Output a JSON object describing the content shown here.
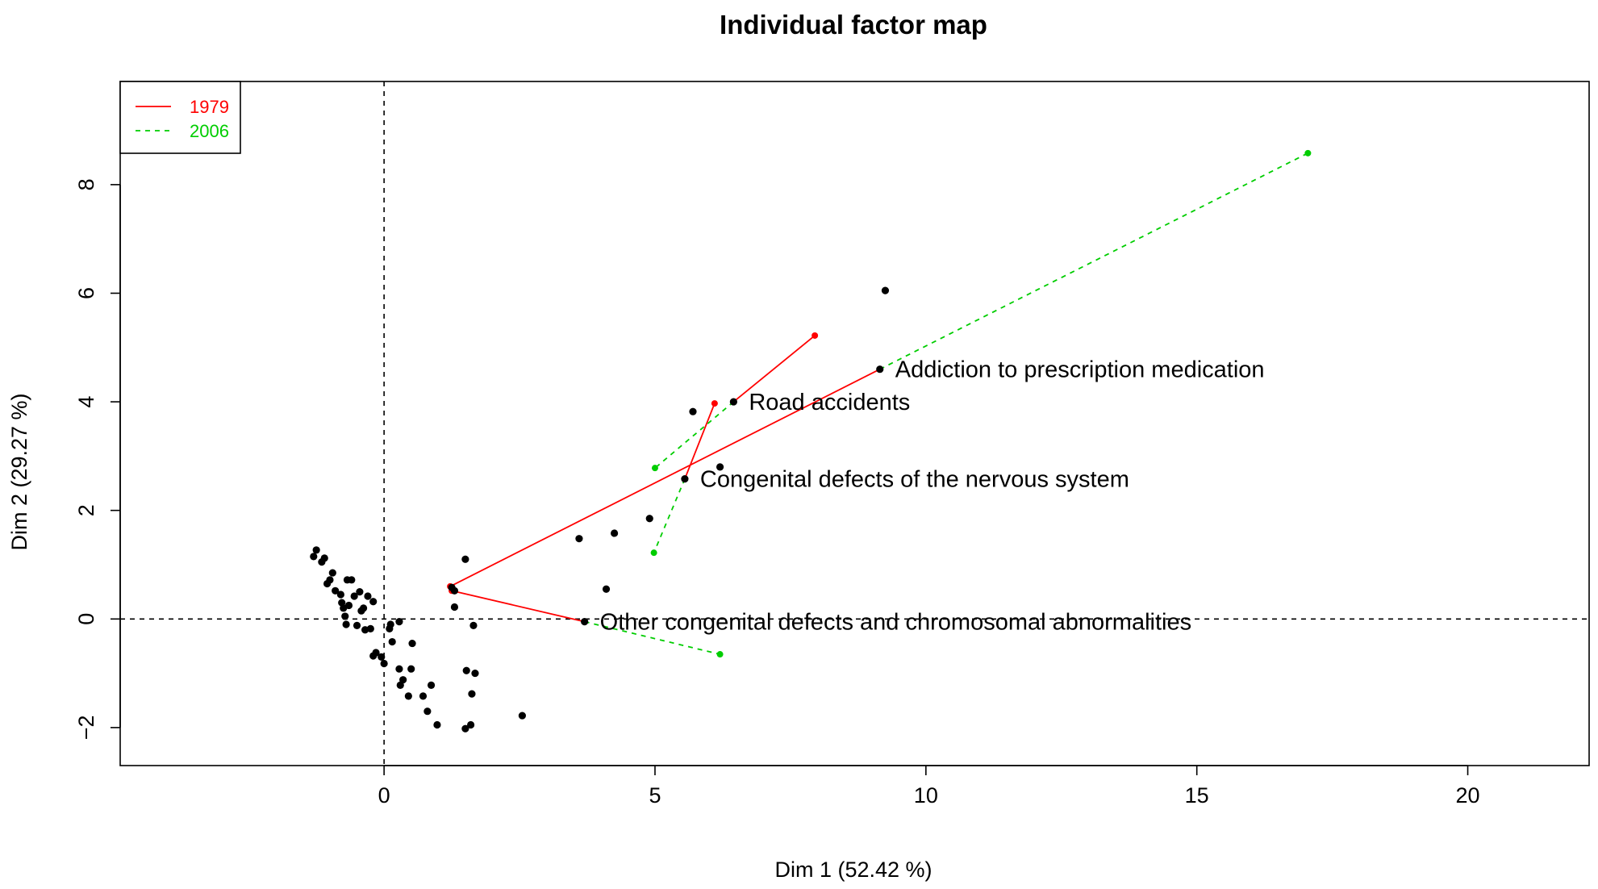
{
  "chart_data": {
    "type": "scatter",
    "title": "Individual factor map",
    "xlabel": "Dim 1 (52.42 %)",
    "ylabel": "Dim 2 (29.27 %)",
    "xlim": [
      -4.87,
      22.24
    ],
    "ylim": [
      -2.7,
      9.9
    ],
    "xticks": [
      0,
      5,
      10,
      15,
      20
    ],
    "yticks": [
      -2,
      0,
      2,
      4,
      6,
      8
    ],
    "reference_lines": {
      "x": 0,
      "y": 0,
      "style": "dashed"
    },
    "legend": {
      "position": "top-left",
      "entries": [
        {
          "label": "1979",
          "color": "#FF0000",
          "style": "solid"
        },
        {
          "label": "2006",
          "color": "#00CD00",
          "style": "dashed"
        }
      ]
    },
    "points": [
      [
        -1.3,
        1.15
      ],
      [
        -1.25,
        1.27
      ],
      [
        -1.15,
        1.05
      ],
      [
        -1.1,
        1.12
      ],
      [
        -1.05,
        0.65
      ],
      [
        -1.0,
        0.72
      ],
      [
        -0.95,
        0.85
      ],
      [
        -0.9,
        0.52
      ],
      [
        -0.8,
        0.45
      ],
      [
        -0.78,
        0.3
      ],
      [
        -0.75,
        0.2
      ],
      [
        -0.72,
        0.05
      ],
      [
        -0.7,
        -0.1
      ],
      [
        -0.68,
        0.72
      ],
      [
        -0.65,
        0.25
      ],
      [
        -0.6,
        0.72
      ],
      [
        -0.55,
        0.42
      ],
      [
        -0.5,
        -0.12
      ],
      [
        -0.45,
        0.5
      ],
      [
        -0.42,
        0.15
      ],
      [
        -0.38,
        0.2
      ],
      [
        -0.35,
        -0.2
      ],
      [
        -0.3,
        0.42
      ],
      [
        -0.25,
        -0.18
      ],
      [
        -0.2,
        0.32
      ],
      [
        -0.2,
        -0.68
      ],
      [
        -0.15,
        -0.62
      ],
      [
        -0.05,
        -0.7
      ],
      [
        0.0,
        -0.82
      ],
      [
        0.1,
        -0.18
      ],
      [
        0.12,
        -0.1
      ],
      [
        0.15,
        -0.42
      ],
      [
        0.28,
        -0.05
      ],
      [
        0.28,
        -0.92
      ],
      [
        0.3,
        -1.22
      ],
      [
        0.35,
        -1.12
      ],
      [
        0.45,
        -1.42
      ],
      [
        0.5,
        -0.92
      ],
      [
        0.52,
        -0.45
      ],
      [
        0.72,
        -1.42
      ],
      [
        0.8,
        -1.7
      ],
      [
        0.87,
        -1.22
      ],
      [
        0.98,
        -1.95
      ],
      [
        1.3,
        0.22
      ],
      [
        1.5,
        1.1
      ],
      [
        1.5,
        -2.02
      ],
      [
        1.52,
        -0.95
      ],
      [
        1.6,
        -1.95
      ],
      [
        1.62,
        -1.38
      ],
      [
        1.65,
        -0.12
      ],
      [
        1.68,
        -1.0
      ],
      [
        2.55,
        -1.78
      ],
      [
        3.6,
        1.48
      ],
      [
        4.1,
        0.55
      ],
      [
        4.25,
        1.58
      ],
      [
        4.9,
        1.85
      ],
      [
        5.55,
        2.58
      ],
      [
        5.7,
        3.82
      ],
      [
        6.2,
        2.8
      ],
      [
        6.45,
        4.0
      ],
      [
        9.15,
        4.6
      ],
      [
        9.25,
        6.05
      ],
      [
        3.7,
        -0.05
      ],
      [
        1.25,
        0.58
      ],
      [
        1.3,
        0.52
      ]
    ],
    "labeled_points": [
      {
        "label": "Addiction to prescription medication",
        "x": 9.15,
        "y": 4.6
      },
      {
        "label": "Road accidents",
        "x": 6.45,
        "y": 4.0
      },
      {
        "label": "Congenital defects of the nervous system",
        "x": 5.55,
        "y": 2.58
      },
      {
        "label": "Other congenital defects and chromosomal abnormalities",
        "x": 3.7,
        "y": -0.05
      }
    ],
    "series": [
      {
        "name": "1979",
        "color": "#FF0000",
        "style": "solid",
        "segments": [
          {
            "from": [
              9.15,
              4.6
            ],
            "to": [
              1.22,
              0.6
            ]
          },
          {
            "from": [
              6.45,
              4.0
            ],
            "to": [
              7.95,
              5.22
            ]
          },
          {
            "from": [
              5.55,
              2.58
            ],
            "to": [
              6.1,
              3.97
            ]
          },
          {
            "from": [
              3.7,
              -0.05
            ],
            "to": [
              1.25,
              0.52
            ]
          }
        ]
      },
      {
        "name": "2006",
        "color": "#00CD00",
        "style": "dashed",
        "segments": [
          {
            "from": [
              9.15,
              4.6
            ],
            "to": [
              17.05,
              8.58
            ]
          },
          {
            "from": [
              6.45,
              4.0
            ],
            "to": [
              5.0,
              2.78
            ]
          },
          {
            "from": [
              5.55,
              2.58
            ],
            "to": [
              4.98,
              1.22
            ]
          },
          {
            "from": [
              3.7,
              -0.05
            ],
            "to": [
              6.2,
              -0.65
            ]
          }
        ]
      }
    ]
  }
}
